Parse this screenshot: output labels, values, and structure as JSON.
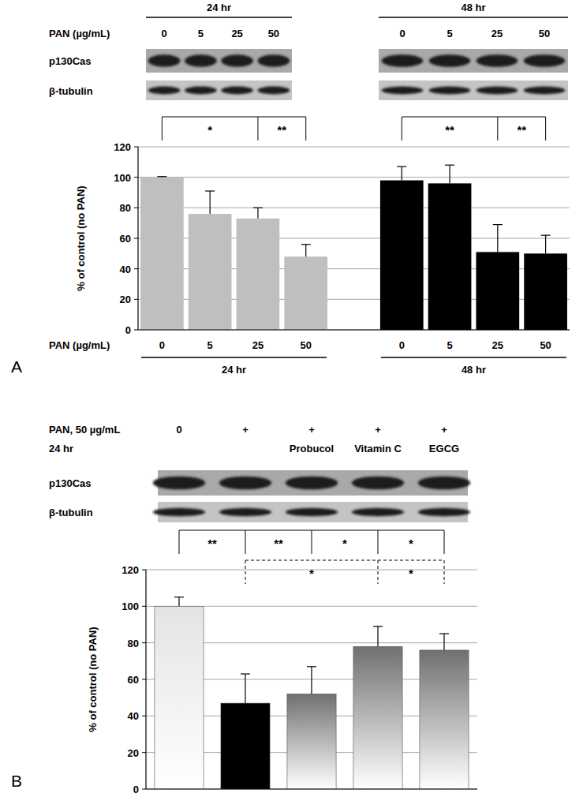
{
  "chart_data": [
    {
      "type": "bar",
      "panel_label": "A",
      "x_label": "PAN (µg/mL)",
      "y_label": "% of control (no PAN)",
      "blot_rows": [
        "p130Cas",
        "β-tubulin"
      ],
      "groups": [
        {
          "label": "24 hr",
          "size": 4
        },
        {
          "label": "48 hr",
          "size": 4
        }
      ],
      "categories": [
        "0",
        "5",
        "25",
        "50",
        "0",
        "5",
        "25",
        "50"
      ],
      "values": [
        100,
        76,
        73,
        48,
        98,
        96,
        51,
        50
      ],
      "errors": [
        0.5,
        15,
        7,
        8,
        9,
        12,
        18,
        12
      ],
      "colors": [
        "#bfbfbf",
        "#bfbfbf",
        "#bfbfbf",
        "#bfbfbf",
        "#000000",
        "#000000",
        "#000000",
        "#000000"
      ],
      "ylim": [
        0,
        120
      ],
      "yticks": [
        0,
        20,
        40,
        60,
        80,
        100,
        120
      ],
      "grid": true,
      "brackets": [
        {
          "from": 0,
          "to": 2,
          "label": "*",
          "line_style": "solid"
        },
        {
          "from": 0,
          "to": 3,
          "label": "**",
          "line_style": "solid"
        },
        {
          "from": 4,
          "to": 6,
          "label": "**",
          "line_style": "solid"
        },
        {
          "from": 4,
          "to": 7,
          "label": "**",
          "line_style": "solid"
        }
      ]
    },
    {
      "type": "bar",
      "panel_label": "B",
      "header": "PAN, 50 µg/mL",
      "time_label": "24 hr",
      "y_label": "% of control (no PAN)",
      "blot_rows": [
        "p130Cas",
        "β-tubulin"
      ],
      "lane_labels": [
        "0",
        "+",
        "+",
        "+",
        "+"
      ],
      "categories": [
        null,
        null,
        "Probucol",
        "Vitamin C",
        "EGCG"
      ],
      "values": [
        100,
        47,
        52,
        78,
        76
      ],
      "errors": [
        5,
        16,
        15,
        11,
        9
      ],
      "colors": [
        "#e4e4e4",
        "#000000",
        "#707070",
        "#707070",
        "#707070"
      ],
      "ylim": [
        0,
        120
      ],
      "yticks": [
        0,
        20,
        40,
        60,
        80,
        100,
        120
      ],
      "grid": true,
      "brackets": [
        {
          "from": 0,
          "to": 1,
          "label": "**",
          "line_style": "solid"
        },
        {
          "from": 0,
          "to": 2,
          "label": "**",
          "line_style": "solid"
        },
        {
          "from": 0,
          "to": 3,
          "label": "*",
          "line_style": "solid"
        },
        {
          "from": 0,
          "to": 4,
          "label": "*",
          "line_style": "solid"
        },
        {
          "from": 1,
          "to": 3,
          "label": "*",
          "line_style": "dashed"
        },
        {
          "from": 1,
          "to": 4,
          "label": "*",
          "line_style": "dashed"
        }
      ]
    }
  ]
}
